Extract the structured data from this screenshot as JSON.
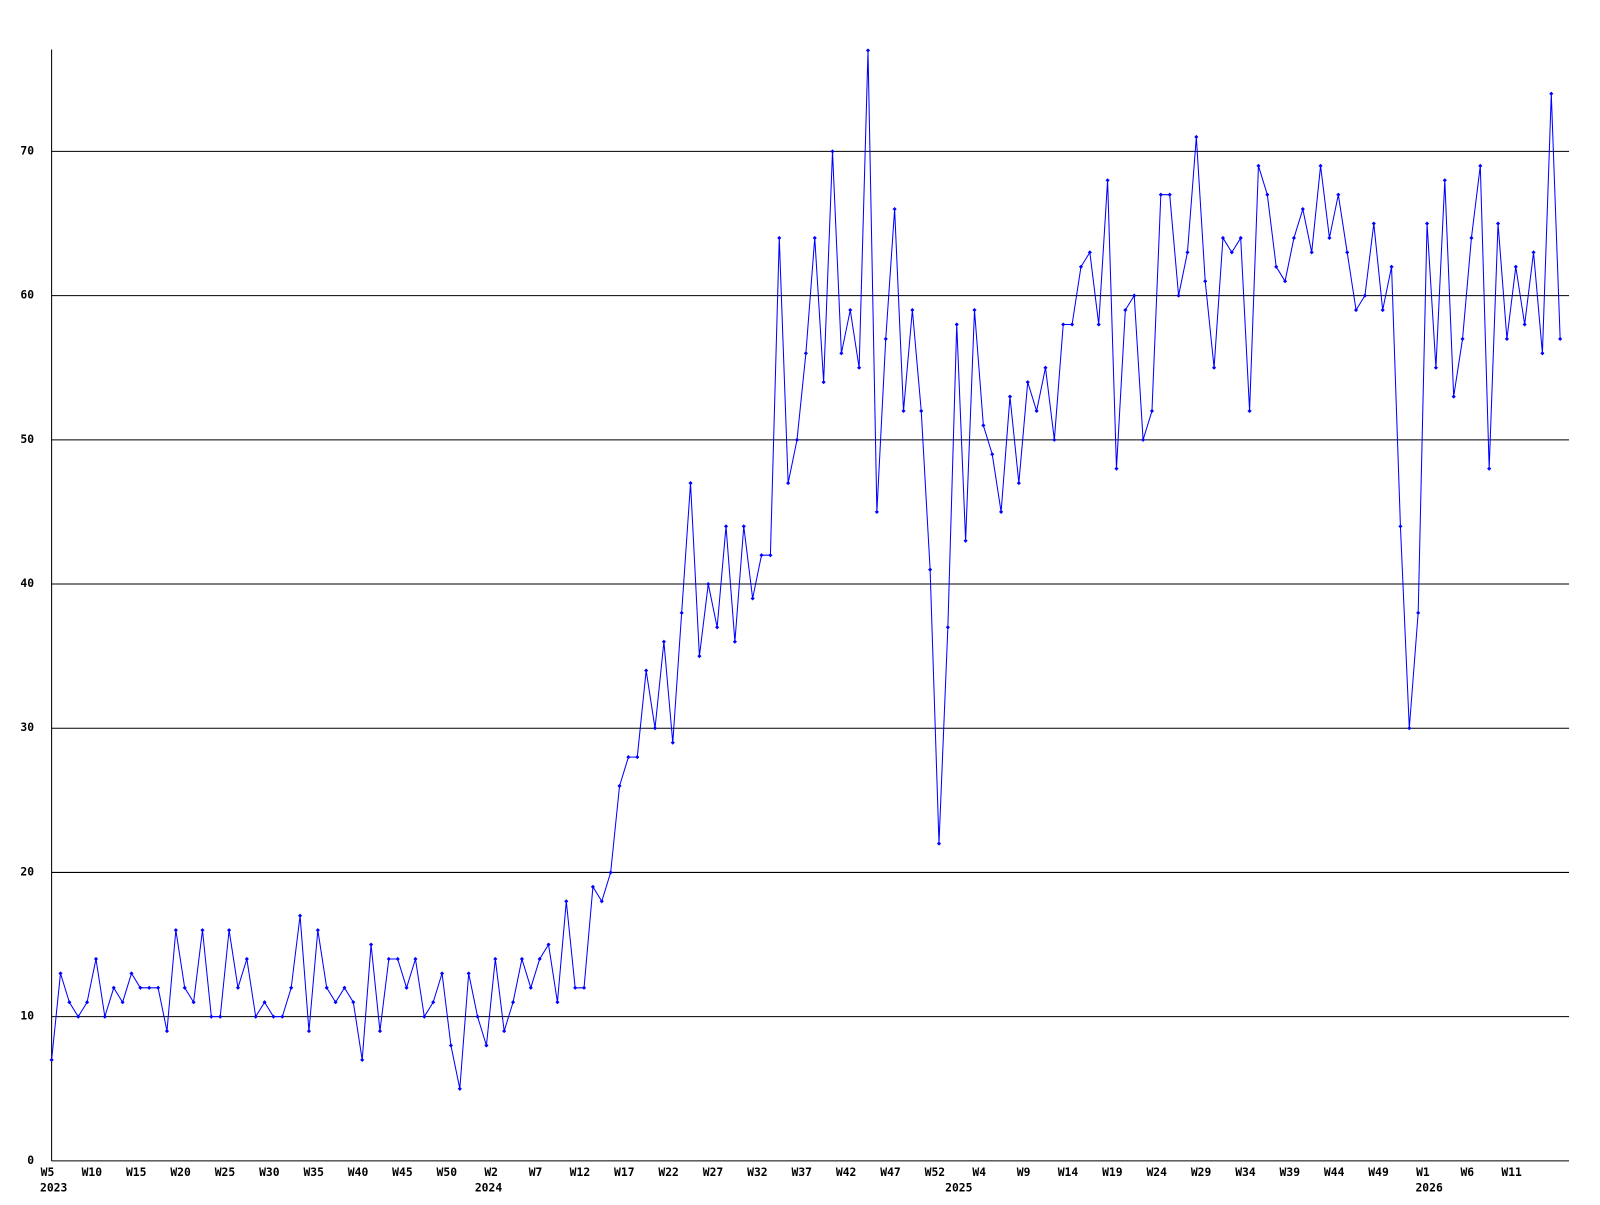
{
  "chart_data": {
    "type": "line",
    "categories": [
      "W5",
      null,
      null,
      null,
      null,
      "W10",
      null,
      null,
      null,
      null,
      "W15",
      null,
      null,
      null,
      null,
      "W20",
      null,
      null,
      null,
      null,
      "W25",
      null,
      null,
      null,
      null,
      "W30",
      null,
      null,
      null,
      null,
      "W35",
      null,
      null,
      null,
      null,
      "W40",
      null,
      null,
      null,
      null,
      "W45",
      null,
      null,
      null,
      null,
      "W50",
      null,
      null,
      null,
      null,
      "W2",
      null,
      null,
      null,
      null,
      "W7",
      null,
      null,
      null,
      null,
      "W12",
      null,
      null,
      null,
      null,
      "W17",
      null,
      null,
      null,
      null,
      "W22",
      null,
      null,
      null,
      null,
      "W27",
      null,
      null,
      null,
      null,
      "W32",
      null,
      null,
      null,
      null,
      "W37",
      null,
      null,
      null,
      null,
      "W42",
      null,
      null,
      null,
      null,
      "W47",
      null,
      null,
      null,
      null,
      "W52",
      null,
      null,
      null,
      null,
      "W4",
      null,
      null,
      null,
      null,
      "W9",
      null,
      null,
      null,
      null,
      "W14",
      null,
      null,
      null,
      null,
      "W19",
      null,
      null,
      null,
      null,
      "W24",
      null,
      null,
      null,
      null,
      "W29",
      null,
      null,
      null,
      null,
      "W34",
      null,
      null,
      null,
      null,
      "W39",
      null,
      null,
      null,
      null,
      "W44",
      null,
      null,
      null,
      null,
      "W49",
      null,
      null,
      null,
      null,
      "W1",
      null,
      null,
      null,
      null,
      "W6",
      null,
      null,
      null,
      null,
      "W11",
      null,
      null,
      null,
      null,
      null
    ],
    "years": [
      "2023",
      null,
      null,
      null,
      null,
      null,
      null,
      null,
      null,
      null,
      null,
      null,
      null,
      null,
      null,
      null,
      null,
      null,
      null,
      null,
      null,
      null,
      null,
      null,
      null,
      null,
      null,
      null,
      null,
      null,
      null,
      null,
      null,
      null,
      null,
      null,
      null,
      null,
      null,
      null,
      null,
      null,
      null,
      null,
      null,
      null,
      null,
      null,
      null,
      "2024",
      null,
      null,
      null,
      null,
      null,
      null,
      null,
      null,
      null,
      null,
      null,
      null,
      null,
      null,
      null,
      null,
      null,
      null,
      null,
      null,
      null,
      null,
      null,
      null,
      null,
      null,
      null,
      null,
      null,
      null,
      null,
      null,
      null,
      null,
      null,
      null,
      null,
      null,
      null,
      null,
      null,
      null,
      null,
      null,
      null,
      null,
      null,
      null,
      null,
      null,
      null,
      null,
      "2025",
      null,
      null,
      null,
      null,
      null,
      null,
      null,
      null,
      null,
      null,
      null,
      null,
      null,
      null,
      null,
      null,
      null,
      null,
      null,
      null,
      null,
      null,
      null,
      null,
      null,
      null,
      null,
      null,
      null,
      null,
      null,
      null,
      null,
      null,
      null,
      null,
      null,
      null,
      null,
      null,
      null,
      null,
      null,
      null,
      null,
      null,
      null,
      null,
      null,
      null,
      null,
      null,
      "2026",
      null,
      null,
      null,
      null,
      null,
      null,
      null,
      null,
      null,
      null,
      null,
      null,
      null,
      null,
      null
    ],
    "values": [
      7,
      13,
      11,
      10,
      11,
      14,
      10,
      12,
      11,
      13,
      12,
      12,
      12,
      9,
      16,
      12,
      11,
      16,
      10,
      10,
      16,
      12,
      14,
      10,
      11,
      10,
      10,
      12,
      17,
      9,
      16,
      12,
      11,
      12,
      11,
      7,
      15,
      9,
      14,
      14,
      12,
      14,
      10,
      11,
      13,
      8,
      5,
      13,
      10,
      8,
      14,
      9,
      11,
      14,
      12,
      14,
      15,
      11,
      18,
      12,
      12,
      19,
      18,
      20,
      26,
      28,
      28,
      34,
      30,
      36,
      29,
      38,
      47,
      35,
      40,
      37,
      44,
      36,
      44,
      39,
      42,
      42,
      64,
      47,
      50,
      56,
      64,
      54,
      70,
      56,
      59,
      55,
      77,
      45,
      57,
      66,
      52,
      59,
      52,
      41,
      22,
      37,
      58,
      43,
      59,
      51,
      49,
      45,
      53,
      47,
      54,
      52,
      55,
      50,
      58,
      58,
      62,
      63,
      58,
      68,
      48,
      59,
      60,
      50,
      52,
      67,
      67,
      60,
      63,
      71,
      61,
      55,
      64,
      63,
      64,
      52,
      69,
      67,
      62,
      61,
      64,
      66,
      63,
      69,
      64,
      67,
      63,
      59,
      60,
      65,
      59,
      62,
      44,
      30,
      38,
      65,
      55,
      68,
      53,
      57,
      64,
      69,
      48,
      65,
      57,
      62,
      58,
      63,
      56,
      74,
      57
    ],
    "color": "#0000ff",
    "ylim": [
      0,
      77
    ],
    "yticks": [
      0,
      10,
      20,
      30,
      40,
      50,
      60,
      70
    ],
    "grid": true
  }
}
